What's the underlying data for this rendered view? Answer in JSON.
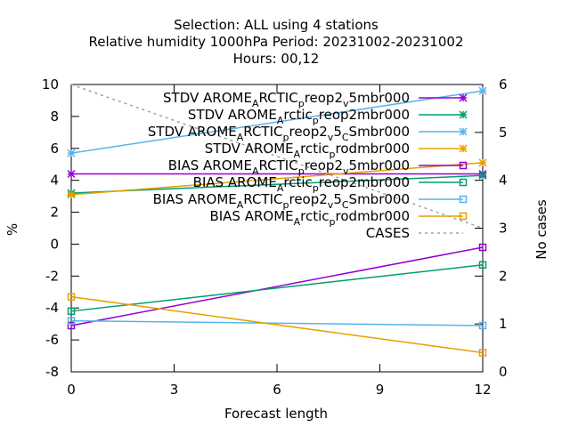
{
  "chart_data": {
    "type": "line",
    "title": [
      "Selection: ALL using     4 stations",
      "Relative humidity 1000hPa   Period: 20231002-20231002",
      "Hours:  00,12"
    ],
    "xlabel": "Forecast length",
    "ylabel": "%",
    "y2label": "No cases",
    "xlim": [
      0,
      12
    ],
    "ylim": [
      -8,
      10
    ],
    "y2lim": [
      0,
      6
    ],
    "xticks": [
      0,
      3,
      6,
      9,
      12
    ],
    "yticks": [
      -8,
      -6,
      -4,
      -2,
      0,
      2,
      4,
      6,
      8,
      10
    ],
    "y2ticks": [
      0,
      1,
      2,
      3,
      4,
      5,
      6
    ],
    "x": [
      0,
      12
    ],
    "series": [
      {
        "name": "STDV AROME_ARCTIC_preop2_v5mbr000",
        "color": "#9400d3",
        "marker": "x",
        "axis": "y1",
        "values": [
          4.4,
          4.4
        ]
      },
      {
        "name": "STDV AROME_Arctic_preop2mbr000",
        "color": "#009e73",
        "marker": "x",
        "axis": "y1",
        "values": [
          3.2,
          4.3
        ]
      },
      {
        "name": "STDV AROME_ARCTIC_preop2_v5_CSmbr000",
        "color": "#56b4e9",
        "marker": "x",
        "axis": "y1",
        "values": [
          5.7,
          9.6
        ]
      },
      {
        "name": "STDV AROME_Arctic_prodmbr000",
        "color": "#e69f00",
        "marker": "x",
        "axis": "y1",
        "values": [
          3.1,
          5.1
        ]
      },
      {
        "name": "BIAS AROME_ARCTIC_preop2_v5mbr000",
        "color": "#9400d3",
        "marker": "square",
        "axis": "y1",
        "values": [
          -5.1,
          -0.2
        ]
      },
      {
        "name": "BIAS AROME_Arctic_preop2mbr000",
        "color": "#009e73",
        "marker": "square",
        "axis": "y1",
        "values": [
          -4.2,
          -1.3
        ]
      },
      {
        "name": "BIAS AROME_ARCTIC_preop2_v5_CSmbr000",
        "color": "#56b4e9",
        "marker": "square",
        "axis": "y1",
        "values": [
          -4.8,
          -5.1
        ]
      },
      {
        "name": "BIAS AROME_Arctic_prodmbr000",
        "color": "#e69f00",
        "marker": "square",
        "axis": "y1",
        "values": [
          -3.3,
          -6.8
        ]
      },
      {
        "name": "CASES",
        "color": "#a0a0a0",
        "marker": "none",
        "dashed": true,
        "axis": "y2",
        "values": [
          6,
          3
        ]
      }
    ],
    "legend": [
      {
        "parts": [
          [
            "STDV AROME",
            0
          ],
          [
            "A",
            -1
          ],
          [
            "RCTIC",
            0
          ],
          [
            "p",
            -1
          ],
          [
            "reop2",
            0
          ],
          [
            "v",
            -1
          ],
          [
            "5mbr000",
            0
          ]
        ]
      },
      {
        "parts": [
          [
            "STDV AROME",
            0
          ],
          [
            "A",
            -1
          ],
          [
            "rctic",
            0
          ],
          [
            "p",
            -1
          ],
          [
            "reop2mbr000",
            0
          ]
        ]
      },
      {
        "parts": [
          [
            "STDV AROME",
            0
          ],
          [
            "A",
            -1
          ],
          [
            "RCTIC",
            0
          ],
          [
            "p",
            -1
          ],
          [
            "reop2",
            0
          ],
          [
            "v",
            -1
          ],
          [
            "5",
            0
          ],
          [
            "C",
            -1
          ],
          [
            "Smbr000",
            0
          ]
        ]
      },
      {
        "parts": [
          [
            "STDV AROME",
            0
          ],
          [
            "A",
            -1
          ],
          [
            "rctic",
            0
          ],
          [
            "p",
            -1
          ],
          [
            "rodmbr000",
            0
          ]
        ]
      },
      {
        "parts": [
          [
            "BIAS AROME",
            0
          ],
          [
            "A",
            -1
          ],
          [
            "RCTIC",
            0
          ],
          [
            "p",
            -1
          ],
          [
            "reop2",
            0
          ],
          [
            "v",
            -1
          ],
          [
            "5mbr000",
            0
          ]
        ]
      },
      {
        "parts": [
          [
            "BIAS AROME",
            0
          ],
          [
            "A",
            -1
          ],
          [
            "rctic",
            0
          ],
          [
            "p",
            -1
          ],
          [
            "reop2mbr000",
            0
          ]
        ]
      },
      {
        "parts": [
          [
            "BIAS AROME",
            0
          ],
          [
            "A",
            -1
          ],
          [
            "RCTIC",
            0
          ],
          [
            "p",
            -1
          ],
          [
            "reop2",
            0
          ],
          [
            "v",
            -1
          ],
          [
            "5",
            0
          ],
          [
            "C",
            -1
          ],
          [
            "Smbr000",
            0
          ]
        ]
      },
      {
        "parts": [
          [
            "BIAS AROME",
            0
          ],
          [
            "A",
            -1
          ],
          [
            "rctic",
            0
          ],
          [
            "p",
            -1
          ],
          [
            "rodmbr000",
            0
          ]
        ]
      },
      {
        "parts": [
          [
            "CASES",
            0
          ]
        ]
      }
    ],
    "legend_position": "top-right",
    "grid": false
  }
}
